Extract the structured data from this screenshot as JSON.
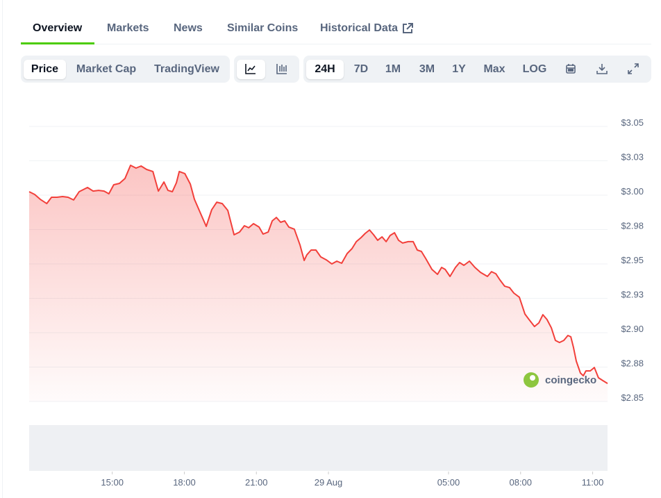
{
  "tabs": [
    "Overview",
    "Markets",
    "News",
    "Similar Coins",
    "Historical Data"
  ],
  "toolbar": {
    "views": [
      "Price",
      "Market Cap",
      "TradingView"
    ],
    "ranges": [
      "24H",
      "7D",
      "1M",
      "3M",
      "1Y",
      "Max",
      "LOG"
    ]
  },
  "watermark": "coingecko",
  "chart_data": {
    "type": "line",
    "color": "#f23f3a",
    "x": [
      -12.46,
      -12.23,
      -12.0,
      -11.73,
      -11.53,
      -11.3,
      -11.07,
      -10.84,
      -10.61,
      -10.38,
      -10.03,
      -9.8,
      -9.57,
      -9.34,
      -9.14,
      -8.94,
      -8.7,
      -8.47,
      -8.24,
      -8.01,
      -7.8,
      -7.57,
      -7.31,
      -7.08,
      -6.85,
      -6.68,
      -6.5,
      -6.33,
      -6.21,
      -5.98,
      -5.75,
      -5.58,
      -5.29,
      -5.09,
      -4.86,
      -4.65,
      -4.42,
      -4.19,
      -3.93,
      -3.7,
      -3.5,
      -3.32,
      -3.12,
      -2.89,
      -2.72,
      -2.51,
      -2.34,
      -2.17,
      -1.99,
      -1.82,
      -1.65,
      -1.42,
      -1.18,
      -1.01,
      -0.9,
      -0.72,
      -0.52,
      -0.32,
      -0.09,
      0.14,
      0.35,
      0.55,
      0.78,
      0.98,
      1.16,
      1.36,
      1.53,
      1.71,
      1.88,
      2.05,
      2.23,
      2.4,
      2.57,
      2.75,
      2.92,
      3.09,
      3.32,
      3.53,
      3.7,
      3.87,
      4.05,
      4.31,
      4.54,
      4.71,
      4.86,
      5.06,
      5.29,
      5.46,
      5.64,
      5.87,
      6.1,
      6.33,
      6.62,
      6.79,
      6.97,
      7.14,
      7.34,
      7.54,
      7.72,
      7.95,
      8.18,
      8.35,
      8.58,
      8.76,
      8.93,
      9.1,
      9.28,
      9.45,
      9.62,
      9.8,
      9.97,
      10.09,
      10.2,
      10.32,
      10.49,
      10.61,
      10.72,
      10.9,
      11.07,
      11.24,
      11.42,
      11.62
    ],
    "values": [
      3.0025,
      3.0005,
      2.997,
      2.9939,
      2.9985,
      2.9985,
      2.999,
      2.9985,
      2.9965,
      3.0025,
      3.0056,
      3.003,
      3.0035,
      3.003,
      3.001,
      3.0076,
      3.0086,
      3.0121,
      3.0217,
      3.0197,
      3.0212,
      3.0187,
      3.0172,
      3.003,
      3.0096,
      3.0035,
      3.0025,
      3.0091,
      3.0172,
      3.0157,
      3.0081,
      2.997,
      2.9854,
      2.9773,
      2.9894,
      2.9949,
      2.9939,
      2.9889,
      2.9712,
      2.9732,
      2.9778,
      2.9763,
      2.9793,
      2.9768,
      2.9717,
      2.9732,
      2.9813,
      2.9838,
      2.9803,
      2.9813,
      2.9768,
      2.9753,
      2.9636,
      2.9525,
      2.9566,
      2.9601,
      2.9601,
      2.9551,
      2.953,
      2.95,
      2.952,
      2.9505,
      2.9576,
      2.9611,
      2.9662,
      2.9692,
      2.9722,
      2.9747,
      2.9712,
      2.9672,
      2.9697,
      2.9662,
      2.9707,
      2.9727,
      2.9672,
      2.9652,
      2.9662,
      2.9662,
      2.9601,
      2.9591,
      2.954,
      2.946,
      2.9424,
      2.9475,
      2.946,
      2.9409,
      2.9475,
      2.951,
      2.949,
      2.952,
      2.9475,
      2.9439,
      2.9409,
      2.9444,
      2.9429,
      2.9384,
      2.9338,
      2.9328,
      2.9288,
      2.9258,
      2.9136,
      2.9096,
      2.9045,
      2.9071,
      2.9131,
      2.9096,
      2.9035,
      2.8944,
      2.8929,
      2.8944,
      2.898,
      2.897,
      2.8894,
      2.8793,
      2.8707,
      2.8687,
      2.8722,
      2.8722,
      2.8747,
      2.8672,
      2.8652,
      2.8631
    ],
    "xlim": [
      -12.46,
      11.62
    ],
    "xticks": [
      {
        "value": -9,
        "label": "15:00"
      },
      {
        "value": -6,
        "label": "18:00"
      },
      {
        "value": -3,
        "label": "21:00"
      },
      {
        "value": 0,
        "label": "29 Aug"
      },
      {
        "value": 5,
        "label": "05:00"
      },
      {
        "value": 8,
        "label": "08:00"
      },
      {
        "value": 11,
        "label": "11:00"
      }
    ],
    "ylim": [
      2.85,
      3.05
    ],
    "yticks": [
      {
        "value": 2.85,
        "label": "$2.85"
      },
      {
        "value": 2.875,
        "label": "$2.88"
      },
      {
        "value": 2.9,
        "label": "$2.90"
      },
      {
        "value": 2.925,
        "label": "$2.93"
      },
      {
        "value": 2.95,
        "label": "$2.95"
      },
      {
        "value": 2.975,
        "label": "$2.98"
      },
      {
        "value": 3.0,
        "label": "$3.00"
      },
      {
        "value": 3.025,
        "label": "$3.03"
      },
      {
        "value": 3.05,
        "label": "$3.05"
      }
    ],
    "grid": true
  }
}
